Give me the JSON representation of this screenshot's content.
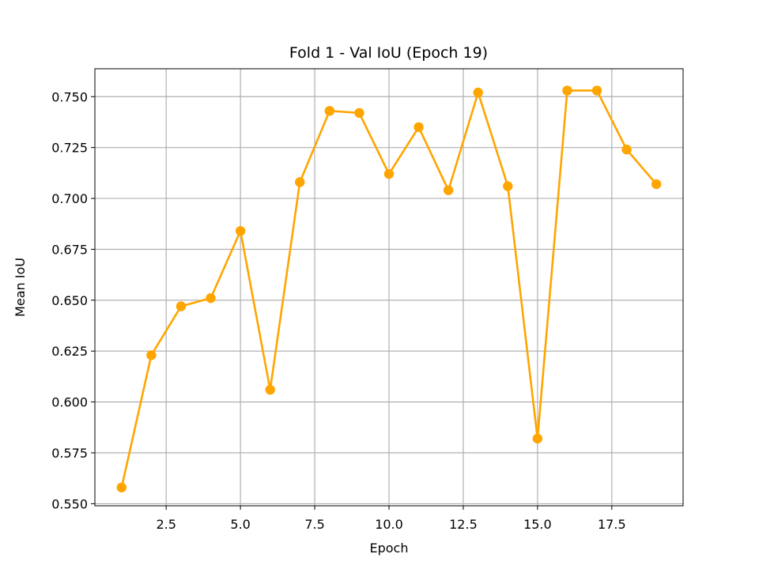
{
  "chart_data": {
    "type": "line",
    "title": "Fold 1 - Val IoU (Epoch 19)",
    "xlabel": "Epoch",
    "ylabel": "Mean IoU",
    "xlim": [
      0.1,
      19.9
    ],
    "ylim": [
      0.549,
      0.7637
    ],
    "xticks": [
      2.5,
      5.0,
      7.5,
      10.0,
      12.5,
      15.0,
      17.5
    ],
    "xtick_labels": [
      "2.5",
      "5.0",
      "7.5",
      "10.0",
      "12.5",
      "15.0",
      "17.5"
    ],
    "yticks": [
      0.55,
      0.575,
      0.6,
      0.625,
      0.65,
      0.675,
      0.7,
      0.725,
      0.75
    ],
    "ytick_labels": [
      "0.550",
      "0.575",
      "0.600",
      "0.625",
      "0.650",
      "0.675",
      "0.700",
      "0.725",
      "0.750"
    ],
    "grid": true,
    "series": [
      {
        "color": "#ffa500",
        "marker": "circle",
        "x": [
          1,
          2,
          3,
          4,
          5,
          6,
          7,
          8,
          9,
          10,
          11,
          12,
          13,
          14,
          15,
          16,
          17,
          18,
          19
        ],
        "values": [
          0.558,
          0.623,
          0.647,
          0.651,
          0.684,
          0.606,
          0.708,
          0.743,
          0.742,
          0.712,
          0.735,
          0.704,
          0.752,
          0.706,
          0.582,
          0.753,
          0.753,
          0.724,
          0.707
        ]
      }
    ]
  }
}
